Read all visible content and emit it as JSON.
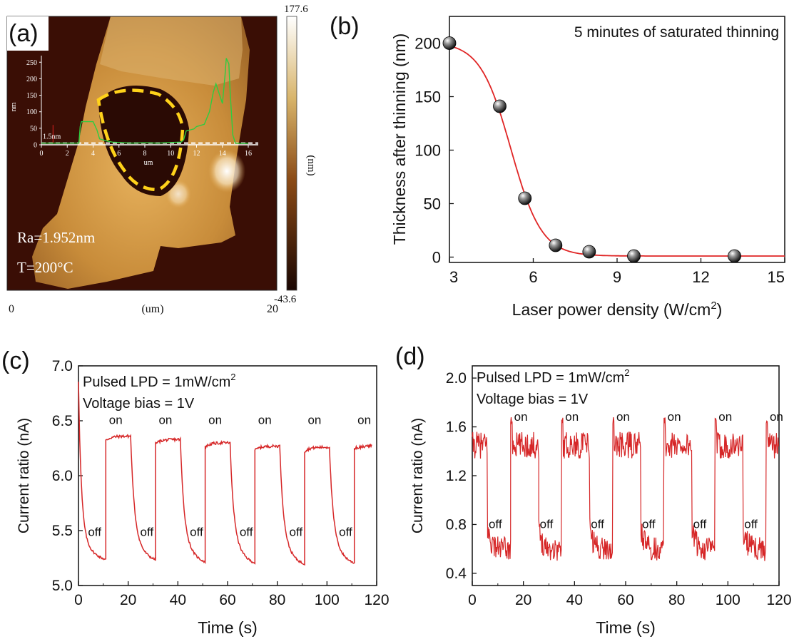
{
  "chart_data": [
    {
      "panel": "a",
      "type": "heatmap",
      "panel_label": "(a)",
      "colorbar": {
        "max": "177.6",
        "min": "-43.6",
        "unit": "(nm)"
      },
      "x_axis": {
        "min": "0",
        "max": "20",
        "unit": "(um)"
      },
      "annotations": {
        "ra": "Ra=1.952nm",
        "temp": "T=200°C"
      },
      "inset": {
        "type": "line",
        "xlabel": "um",
        "ylabel": "nm",
        "xticks": [
          "0",
          "2",
          "4",
          "6",
          "8",
          "10",
          "12",
          "14",
          "16"
        ],
        "yticks": [
          "0",
          "50",
          "100",
          "150",
          "200",
          "250"
        ],
        "marker_label": "1.5nm",
        "xlim": [
          0,
          16
        ],
        "ylim": [
          0,
          270
        ],
        "x": [
          0,
          2.9,
          3.0,
          3.1,
          4.0,
          4.3,
          4.5,
          5.0,
          5.5,
          6,
          7,
          8,
          9,
          10,
          10.8,
          11,
          11.2,
          11.8,
          12.0,
          12.6,
          13,
          13.3,
          13.5,
          14.0,
          14.2,
          14.3,
          14.5,
          14.6,
          14.8,
          15.0,
          15.3,
          16
        ],
        "y": [
          5,
          5,
          55,
          70,
          70,
          45,
          18,
          12,
          8,
          7,
          5,
          6,
          5,
          7,
          8,
          15,
          42,
          48,
          55,
          62,
          100,
          160,
          185,
          125,
          210,
          262,
          245,
          160,
          30,
          5,
          4,
          4
        ]
      }
    },
    {
      "panel": "b",
      "type": "scatter",
      "panel_label": "(b)",
      "annotation": "5 minutes of saturated thinning",
      "xlabel": "Laser power density (W/cm",
      "xlabel_sup": "2",
      "xlabel_end": ")",
      "ylabel": "Thickness after thinning (nm)",
      "xlim": [
        3,
        15
      ],
      "ylim": [
        -5,
        225
      ],
      "xticks": [
        "3",
        "6",
        "9",
        "12",
        "15"
      ],
      "yticks": [
        "0",
        "50",
        "100",
        "150",
        "200"
      ],
      "points": {
        "x": [
          3.0,
          4.8,
          5.7,
          6.8,
          8.0,
          9.6,
          13.2
        ],
        "y": [
          200,
          141,
          55,
          11,
          5,
          1,
          1
        ]
      },
      "fit": {
        "kind": "sigmoid",
        "bottom": 1,
        "top": 201,
        "x0": 5.2,
        "dx": 0.55,
        "color": "#e02525"
      }
    },
    {
      "panel": "c",
      "type": "line",
      "panel_label": "(c)",
      "xlabel": "Time (s)",
      "ylabel": "Current ratio (nA)",
      "xlim": [
        0,
        120
      ],
      "ylim": [
        5.0,
        7.0
      ],
      "xticks": [
        "0",
        "20",
        "40",
        "60",
        "80",
        "100",
        "120"
      ],
      "yticks": [
        "5.0",
        "5.5",
        "6.0",
        "6.5",
        "7.0"
      ],
      "legend": [
        "Pulsed LPD = 1mW/cm",
        "Voltage bias = 1V"
      ],
      "legend_sup": "2",
      "on_label": "on",
      "off_label": "off",
      "on_times": [
        11,
        31,
        51,
        71,
        91,
        111
      ],
      "off_times": [
        0,
        21,
        41,
        61,
        81,
        101
      ],
      "on_levels": [
        6.36,
        6.33,
        6.3,
        6.27,
        6.26,
        6.28
      ],
      "off_floor": [
        5.2,
        5.19,
        5.17,
        5.16,
        5.15,
        5.16
      ],
      "series": [
        {
          "name": "Current",
          "color": "#d62728"
        }
      ]
    },
    {
      "panel": "d",
      "type": "line",
      "panel_label": "(d)",
      "xlabel": "Time (s)",
      "ylabel": "Current ratio (nA)",
      "xlim": [
        0,
        120
      ],
      "ylim": [
        0.3,
        2.1
      ],
      "xticks": [
        "0",
        "20",
        "40",
        "60",
        "80",
        "100",
        "120"
      ],
      "yticks": [
        "0.4",
        "0.8",
        "1.2",
        "1.6",
        "2.0"
      ],
      "legend": [
        "Pulsed LPD = 1mW/cm",
        "Voltage bias = 1V"
      ],
      "legend_sup": "2",
      "on_label": "on",
      "off_label": "off",
      "on_times": [
        0,
        15,
        35,
        55,
        75,
        95,
        115
      ],
      "off_times": [
        6,
        26,
        46,
        66,
        86,
        106
      ],
      "on_level": 1.45,
      "off_level": 0.6,
      "series": [
        {
          "name": "Current",
          "color": "#d62728"
        }
      ]
    }
  ]
}
